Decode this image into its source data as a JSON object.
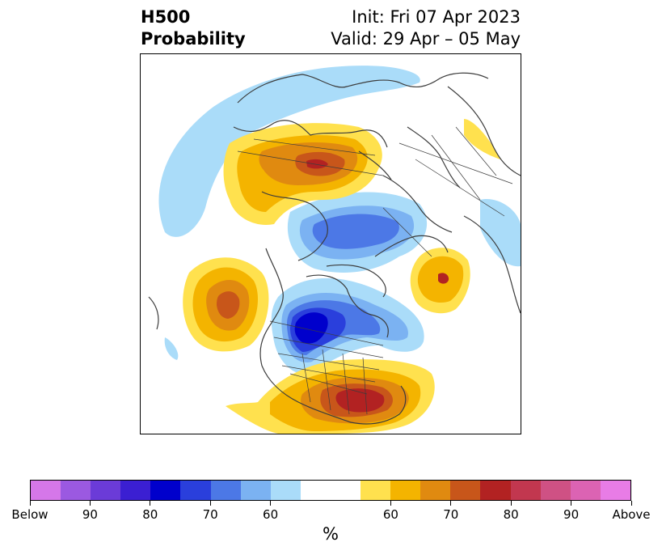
{
  "title": {
    "left_line1": "H500",
    "left_line2": "Probability",
    "right_line1": "Init: Fri 07 Apr 2023",
    "right_line2": "Valid: 29 Apr – 05 May"
  },
  "colorbar": {
    "unit": "%",
    "colors": [
      "#d577e9",
      "#9b59e1",
      "#6b3bd8",
      "#3b1fd2",
      "#0000cc",
      "#2a3fdc",
      "#4c78e6",
      "#7bb2f2",
      "#aadcf9",
      "#ffffff",
      "#ffffff",
      "#ffe14e",
      "#f4b400",
      "#e08a10",
      "#c8561a",
      "#b22222",
      "#c2374f",
      "#cf5184",
      "#dc63b3",
      "#e87ce6"
    ],
    "tick_labels": [
      "Below",
      "90",
      "80",
      "70",
      "60",
      "60",
      "70",
      "80",
      "90",
      "Above"
    ]
  },
  "map": {
    "palette": {
      "blue60": "#aadcf9",
      "blue65": "#7bb2f2",
      "blue70": "#4c78e6",
      "blue75": "#2a3fdc",
      "blue80": "#0000cc",
      "yellow60": "#ffe14e",
      "orange65": "#f4b400",
      "orange70": "#e08a10",
      "orange75": "#c8561a",
      "red80": "#b22222",
      "coast": "#3c3c3c"
    }
  }
}
